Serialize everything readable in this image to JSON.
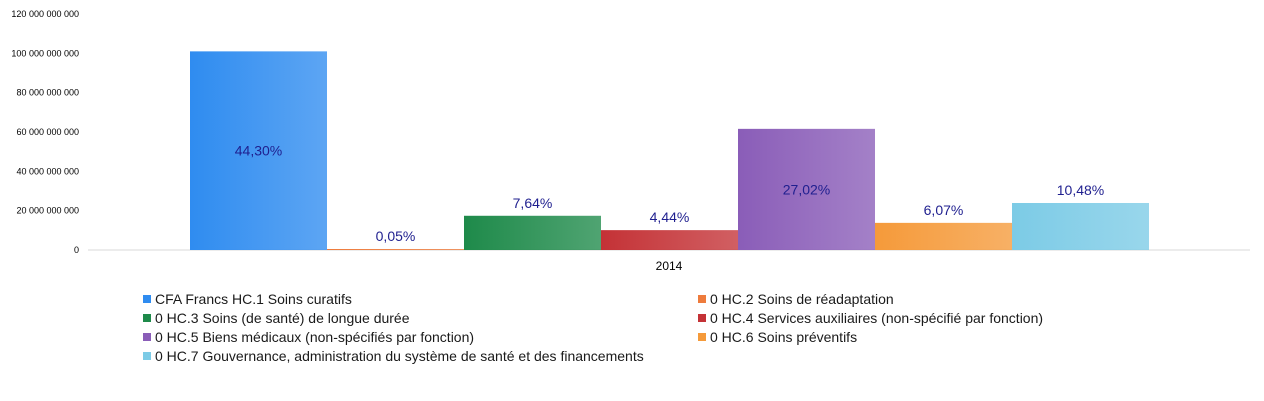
{
  "chart_data": {
    "type": "bar",
    "categories": [
      "2014"
    ],
    "series": [
      {
        "name": "CFA Francs HC.1 Soins curatifs",
        "values": [
          101000000000
        ],
        "label": "44,30%",
        "color": "#2f8cf0"
      },
      {
        "name": "0 HC.2 Soins de réadaptation",
        "values": [
          120000000
        ],
        "label": "0,05%",
        "color": "#ee7b3c"
      },
      {
        "name": "0 HC.3 Soins (de santé) de longue durée",
        "values": [
          17400000000
        ],
        "label": "7,64%",
        "color": "#1e8a4a"
      },
      {
        "name": "0 HC.4 Services auxiliaires (non-spécifié par fonction)",
        "values": [
          10100000000
        ],
        "label": "4,44%",
        "color": "#c43236"
      },
      {
        "name": "0 HC.5 Biens médicaux (non-spécifiés par fonction)",
        "values": [
          61600000000
        ],
        "label": "27,02%",
        "color": "#8a5db8"
      },
      {
        "name": "0 HC.6 Soins préventifs",
        "values": [
          13800000000
        ],
        "label": "6,07%",
        "color": "#f59a3a"
      },
      {
        "name": "0 HC.7 Gouvernance, administration du système de santé et des financements",
        "values": [
          23900000000
        ],
        "label": "10,48%",
        "color": "#7ccbe6"
      }
    ],
    "ylim": [
      0,
      120000000000
    ],
    "yticks": [
      "0",
      "20 000 000 000",
      "40 000 000 000",
      "60 000 000 000",
      "80 000 000 000",
      "100 000 000 000",
      "120 000 000 000"
    ],
    "ytick_values": [
      0,
      20000000000,
      40000000000,
      60000000000,
      80000000000,
      100000000000,
      120000000000
    ],
    "grid": false,
    "legend_position": "bottom"
  }
}
